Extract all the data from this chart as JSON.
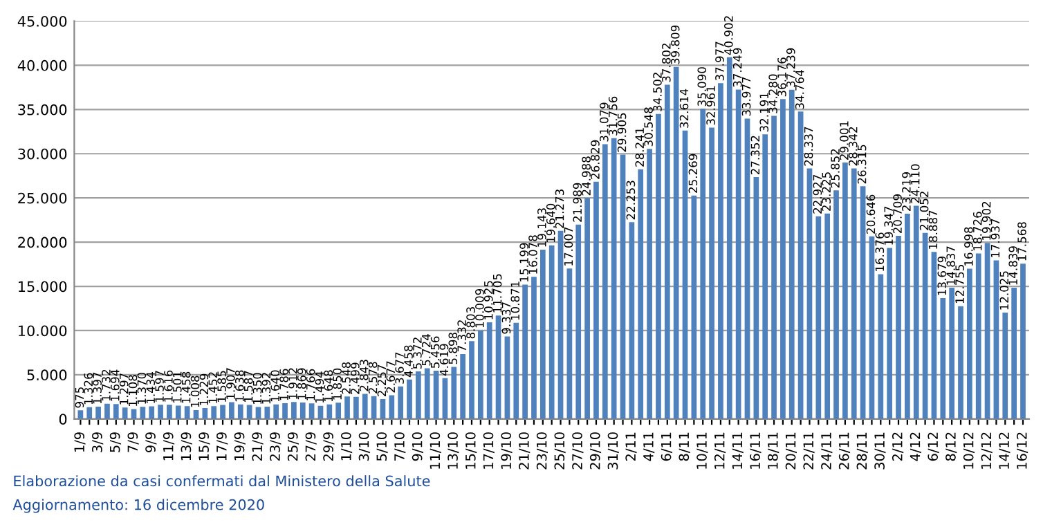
{
  "chart_data": {
    "type": "bar",
    "color": "#4f81bd",
    "categories": [
      "1/9",
      null,
      "3/9",
      null,
      "5/9",
      null,
      "7/9",
      null,
      "9/9",
      null,
      "11/9",
      null,
      "13/9",
      null,
      "15/9",
      null,
      "17/9",
      null,
      "19/9",
      null,
      "21/9",
      null,
      "23/9",
      null,
      "25/9",
      null,
      "27/9",
      null,
      "29/9",
      null,
      "1/10",
      null,
      "3/10",
      null,
      "5/10",
      null,
      "7/10",
      null,
      "9/10",
      null,
      "11/10",
      null,
      "13/10",
      null,
      "15/10",
      null,
      "17/10",
      null,
      "19/10",
      null,
      "21/10",
      null,
      "23/10",
      null,
      "25/10",
      null,
      "27/10",
      null,
      "29/10",
      null,
      "31/10",
      null,
      "2/11",
      null,
      "4/11",
      null,
      "6/11",
      null,
      "8/11",
      null,
      "10/11",
      null,
      "12/11",
      null,
      "14/11",
      null,
      "16/11",
      null,
      "18/11",
      null,
      "20/11",
      null,
      "22/11",
      null,
      "24/11",
      null,
      "26/11",
      null,
      "28/11",
      null,
      "30/11",
      null,
      "2/12",
      null,
      "4/12",
      null,
      "6/12",
      null,
      "8/12",
      null,
      "10/12",
      null,
      "12/12",
      null,
      "14/12",
      null,
      "16/12"
    ],
    "values": [
      975,
      1326,
      1397,
      1732,
      1694,
      1297,
      1108,
      1370,
      1434,
      1597,
      1616,
      1501,
      1458,
      1008,
      1229,
      1452,
      1585,
      1907,
      1638,
      1587,
      1350,
      1392,
      1640,
      1786,
      1912,
      1869,
      1766,
      1494,
      1648,
      1850,
      2548,
      2499,
      2843,
      2578,
      2257,
      2677,
      3677,
      4458,
      5372,
      5724,
      5456,
      4619,
      5898,
      7332,
      8803,
      10009,
      10925,
      11705,
      9337,
      10871,
      15199,
      16078,
      19143,
      19640,
      21273,
      17007,
      21989,
      24988,
      26829,
      31079,
      31756,
      29905,
      22253,
      28241,
      30548,
      34502,
      37802,
      39809,
      32614,
      25269,
      35090,
      32961,
      37977,
      40902,
      37249,
      33977,
      27352,
      32191,
      34280,
      36176,
      37239,
      34764,
      28337,
      22927,
      23225,
      25852,
      29001,
      28342,
      26315,
      20646,
      16376,
      19347,
      20709,
      23219,
      24110,
      21052,
      18887,
      13679,
      14837,
      12755,
      16998,
      18726,
      19902,
      17937,
      12025,
      14839,
      17568
    ],
    "value_labels": [
      "975",
      "1.326",
      "1.397",
      "1.732",
      "1.694",
      "1.297",
      "1.108",
      "1.370",
      "1.434",
      "1.597",
      "1.616",
      "1.501",
      "1.458",
      "1.008",
      "1.229",
      "1.452",
      "1.585",
      "1.907",
      "1.638",
      "1.587",
      "1.350",
      "1.392",
      "1.640",
      "1.786",
      "1.912",
      "1.869",
      "1.766",
      "1.494",
      "1.648",
      "1.850",
      "2.548",
      "2.499",
      "2.843",
      "2.578",
      "2.257",
      "2.677",
      "3.677",
      "4.458",
      "5.372",
      "5.724",
      "5.456",
      "4.619",
      "5.898",
      "7.332",
      "8.803",
      "10.009",
      "10.925",
      "11.705",
      "9.337",
      "10.871",
      "15.199",
      "16.078",
      "19.143",
      "19.640",
      "21.273",
      "17.007",
      "21.989",
      "24.988",
      "26.829",
      "31.079",
      "31.756",
      "29.905",
      "22.253",
      "28.241",
      "30.548",
      "34.502",
      "37.802",
      "39.809",
      "32.614",
      "25.269",
      "35.090",
      "32.961",
      "37.977",
      "40.902",
      "37.249",
      "33.977",
      "27.352",
      "32.191",
      "34.280",
      "36.176",
      "37.239",
      "34.764",
      "28.337",
      "22.927",
      "23.225",
      "25.852",
      "29.001",
      "28.342",
      "26.315",
      "20.646",
      "16.376",
      "19.347",
      "20.709",
      "23.219",
      "24.110",
      "21.052",
      "18.887",
      "13.679",
      "14.837",
      "12.755",
      "16.998",
      "18.726",
      "19.902",
      "17.937",
      "12.025",
      "14.839",
      "17.568"
    ],
    "ylim": [
      0,
      45000
    ],
    "yticks": [
      0,
      {
        "value": 5000,
        "label": "5.000"
      },
      {
        "value": 10000,
        "label": "10.000"
      },
      {
        "value": 15000,
        "label": "15.000"
      },
      {
        "value": 20000,
        "label": "20.000"
      },
      {
        "value": 25000,
        "label": "25.000"
      },
      {
        "value": 30000,
        "label": "30.000"
      },
      {
        "value": 35000,
        "label": "35.000"
      },
      {
        "value": 40000,
        "label": "40.000"
      },
      {
        "value": 45000,
        "label": "45.000"
      }
    ],
    "grid": "y",
    "annotations": [
      "Elaborazione da casi confermati dal Ministero della Salute",
      "Aggiornamento: 16 dicembre 2020"
    ]
  }
}
